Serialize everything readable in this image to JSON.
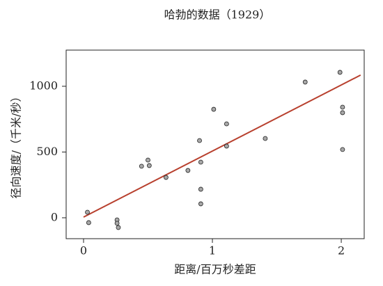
{
  "chart_data": {
    "type": "scatter",
    "title": "哈勃的数据（1929）",
    "xlabel": "距离/百万秒差距",
    "ylabel": "径向速度/（千米/秒）",
    "series": [
      {
        "color": "#a8a8a8",
        "x": [
          0.03,
          0.04,
          0.26,
          0.26,
          0.27,
          0.45,
          0.5,
          0.51,
          0.64,
          0.81,
          0.9,
          0.91,
          0.91,
          0.91,
          1.01,
          1.11,
          1.11,
          1.41,
          1.72,
          1.99,
          2.01,
          2.01,
          2.01
        ],
        "values": [
          42,
          -37,
          -16,
          -42,
          -74,
          392,
          439,
          397,
          307,
          360,
          587,
          423,
          217,
          106,
          825,
          714,
          545,
          603,
          1032,
          1106,
          841,
          799,
          519
        ]
      }
    ],
    "fit": {
      "color": "#b8402e",
      "x": [
        0,
        2.15
      ],
      "values": [
        5,
        1085
      ]
    },
    "xlim": [
      -0.135,
      2.178
    ],
    "ylim": [
      -159,
      1275
    ],
    "xticks": [
      0,
      1,
      2
    ],
    "yticks": [
      0,
      500,
      1000
    ]
  }
}
